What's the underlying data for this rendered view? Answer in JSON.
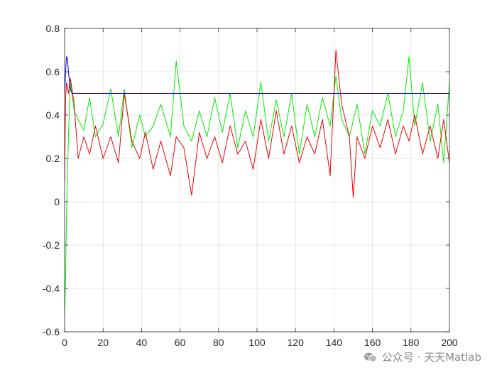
{
  "chart_data": {
    "type": "line",
    "title": "",
    "xlabel": "",
    "ylabel": "",
    "xlim": [
      0,
      200
    ],
    "ylim": [
      -0.6,
      0.8
    ],
    "x_ticks": [
      0,
      20,
      40,
      60,
      80,
      100,
      120,
      140,
      160,
      180,
      200
    ],
    "y_ticks": [
      -0.6,
      -0.4,
      -0.2,
      0,
      0.2,
      0.4,
      0.6,
      0.8
    ],
    "x_tick_labels": [
      "0",
      "20",
      "40",
      "60",
      "80",
      "100",
      "120",
      "140",
      "160",
      "180",
      "200"
    ],
    "y_tick_labels": [
      "-0.6",
      "-0.4",
      "-0.2",
      "0",
      "0.2",
      "0.4",
      "0.6",
      "0.8"
    ],
    "grid": true,
    "legend": "none",
    "series": [
      {
        "color": "#00ee00",
        "x": [
          0,
          0.5,
          1,
          2,
          3,
          5,
          7,
          10,
          13,
          16,
          20,
          24,
          28,
          31,
          35,
          39,
          42,
          46,
          50,
          55,
          58,
          62,
          66,
          70,
          74,
          78,
          82,
          86,
          90,
          94,
          98,
          102,
          106,
          110,
          114,
          118,
          122,
          126,
          130,
          134,
          138,
          141,
          144,
          148,
          152,
          156,
          160,
          164,
          168,
          172,
          176,
          179,
          182,
          186,
          190,
          194,
          197,
          200
        ],
        "values": [
          -0.53,
          -0.35,
          -0.05,
          0.3,
          0.55,
          0.42,
          0.38,
          0.33,
          0.48,
          0.3,
          0.36,
          0.52,
          0.3,
          0.52,
          0.25,
          0.4,
          0.3,
          0.35,
          0.45,
          0.3,
          0.65,
          0.35,
          0.28,
          0.42,
          0.3,
          0.48,
          0.32,
          0.5,
          0.25,
          0.42,
          0.3,
          0.55,
          0.28,
          0.47,
          0.3,
          0.5,
          0.22,
          0.45,
          0.3,
          0.48,
          0.35,
          0.58,
          0.38,
          0.3,
          0.45,
          0.22,
          0.42,
          0.35,
          0.5,
          0.3,
          0.42,
          0.67,
          0.35,
          0.55,
          0.28,
          0.45,
          0.18,
          0.55
        ]
      },
      {
        "color": "#ee0000",
        "x": [
          0,
          0.5,
          1,
          2,
          3,
          5,
          7,
          10,
          13,
          16,
          20,
          24,
          28,
          31,
          35,
          39,
          42,
          46,
          50,
          55,
          58,
          62,
          66,
          70,
          74,
          78,
          82,
          86,
          90,
          94,
          98,
          102,
          106,
          110,
          114,
          118,
          122,
          126,
          130,
          134,
          138,
          141,
          144,
          148,
          150,
          152,
          156,
          160,
          164,
          168,
          172,
          176,
          179,
          182,
          186,
          190,
          194,
          197,
          200
        ],
        "values": [
          0.1,
          0.48,
          0.55,
          0.5,
          0.57,
          0.45,
          0.2,
          0.3,
          0.22,
          0.35,
          0.2,
          0.3,
          0.18,
          0.5,
          0.28,
          0.2,
          0.32,
          0.15,
          0.28,
          0.12,
          0.3,
          0.25,
          0.03,
          0.32,
          0.2,
          0.3,
          0.18,
          0.35,
          0.22,
          0.28,
          0.15,
          0.38,
          0.2,
          0.42,
          0.22,
          0.35,
          0.18,
          0.3,
          0.22,
          0.38,
          0.12,
          0.7,
          0.45,
          0.3,
          0.02,
          0.3,
          0.2,
          0.35,
          0.25,
          0.38,
          0.22,
          0.35,
          0.28,
          0.4,
          0.22,
          0.35,
          0.2,
          0.38,
          0.18
        ]
      },
      {
        "color": "#0000ee",
        "x": [
          0,
          0.5,
          1,
          1.5,
          2,
          3,
          4,
          6,
          10,
          20,
          40,
          60,
          80,
          100,
          120,
          140,
          160,
          180,
          200
        ],
        "values": [
          0.5,
          0.6,
          0.67,
          0.66,
          0.6,
          0.52,
          0.5,
          0.5,
          0.5,
          0.5,
          0.5,
          0.5,
          0.5,
          0.5,
          0.5,
          0.5,
          0.5,
          0.5,
          0.5
        ]
      }
    ]
  },
  "watermark": {
    "icon": "wechat-icon",
    "text": "公众号 · 天天Matlab"
  }
}
